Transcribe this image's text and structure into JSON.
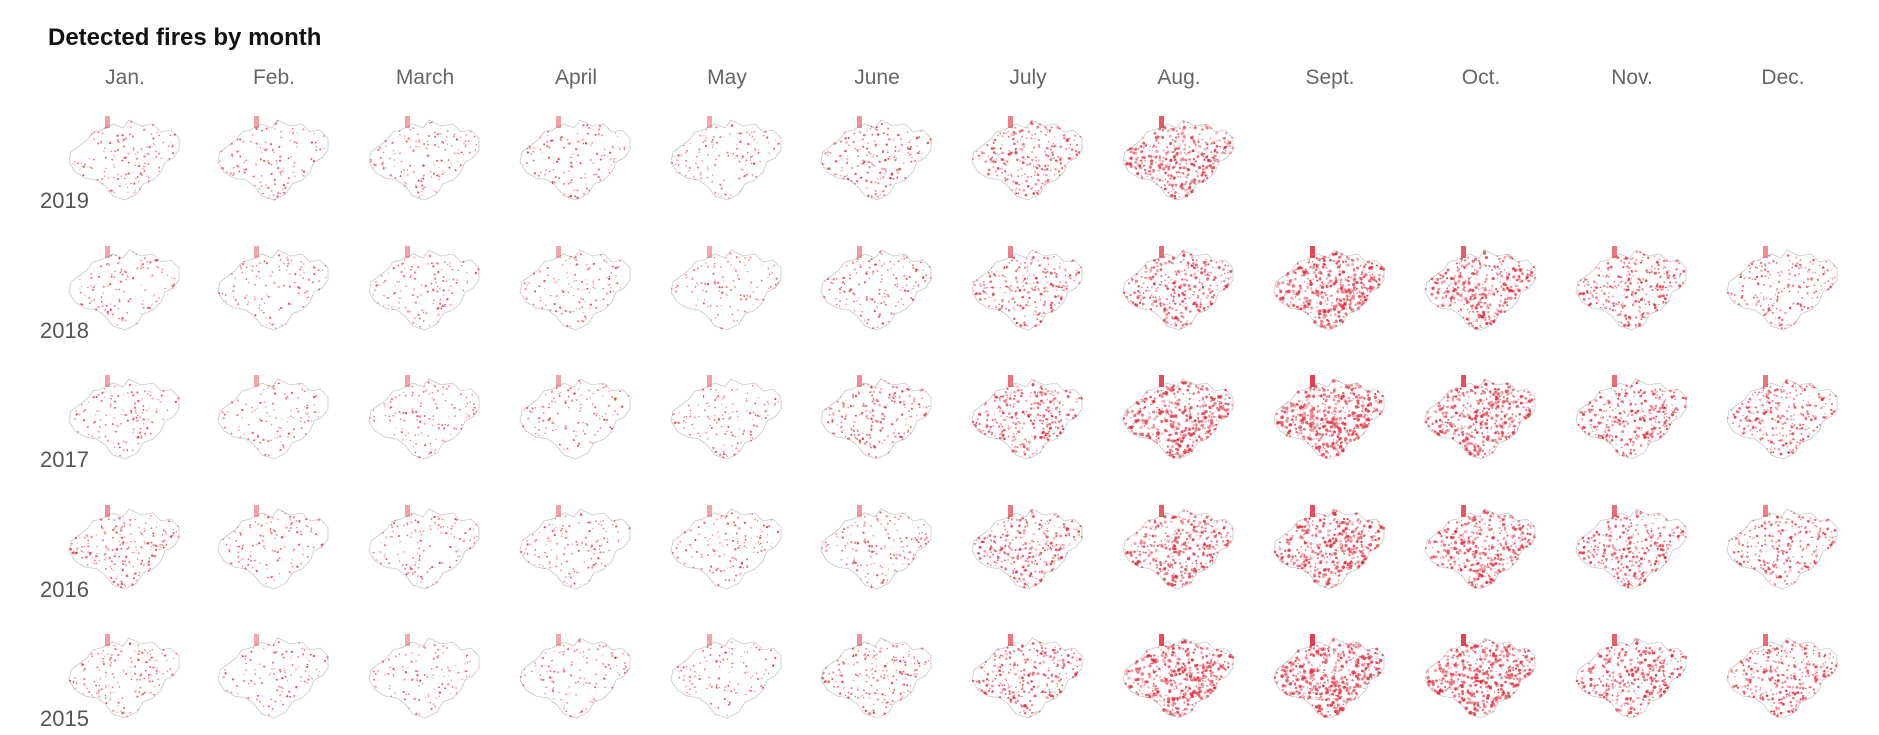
{
  "title": "Detected fires by month",
  "months": [
    "Jan.",
    "Feb.",
    "March",
    "April",
    "May",
    "June",
    "July",
    "Aug.",
    "Sept.",
    "Oct.",
    "Nov.",
    "Dec."
  ],
  "years": [
    "2019",
    "2018",
    "2017",
    "2016",
    "2015"
  ],
  "colors": {
    "fire": "#e0303e",
    "outline": "#c8c8c8",
    "background": "#ffffff",
    "title": "#121212",
    "label": "#666666"
  },
  "fire_intensity": {
    "2019": [
      0.18,
      0.16,
      0.18,
      0.16,
      0.14,
      0.28,
      0.45,
      0.75,
      null,
      null,
      null,
      null
    ],
    "2018": [
      0.14,
      0.12,
      0.16,
      0.14,
      0.12,
      0.22,
      0.42,
      0.62,
      0.88,
      0.72,
      0.55,
      0.32
    ],
    "2017": [
      0.16,
      0.12,
      0.16,
      0.14,
      0.16,
      0.32,
      0.55,
      0.85,
      0.95,
      0.82,
      0.6,
      0.5
    ],
    "2016": [
      0.32,
      0.16,
      0.16,
      0.16,
      0.16,
      0.22,
      0.52,
      0.72,
      0.82,
      0.75,
      0.6,
      0.45
    ],
    "2015": [
      0.22,
      0.12,
      0.12,
      0.14,
      0.12,
      0.3,
      0.5,
      0.85,
      0.95,
      0.92,
      0.7,
      0.6
    ]
  }
}
